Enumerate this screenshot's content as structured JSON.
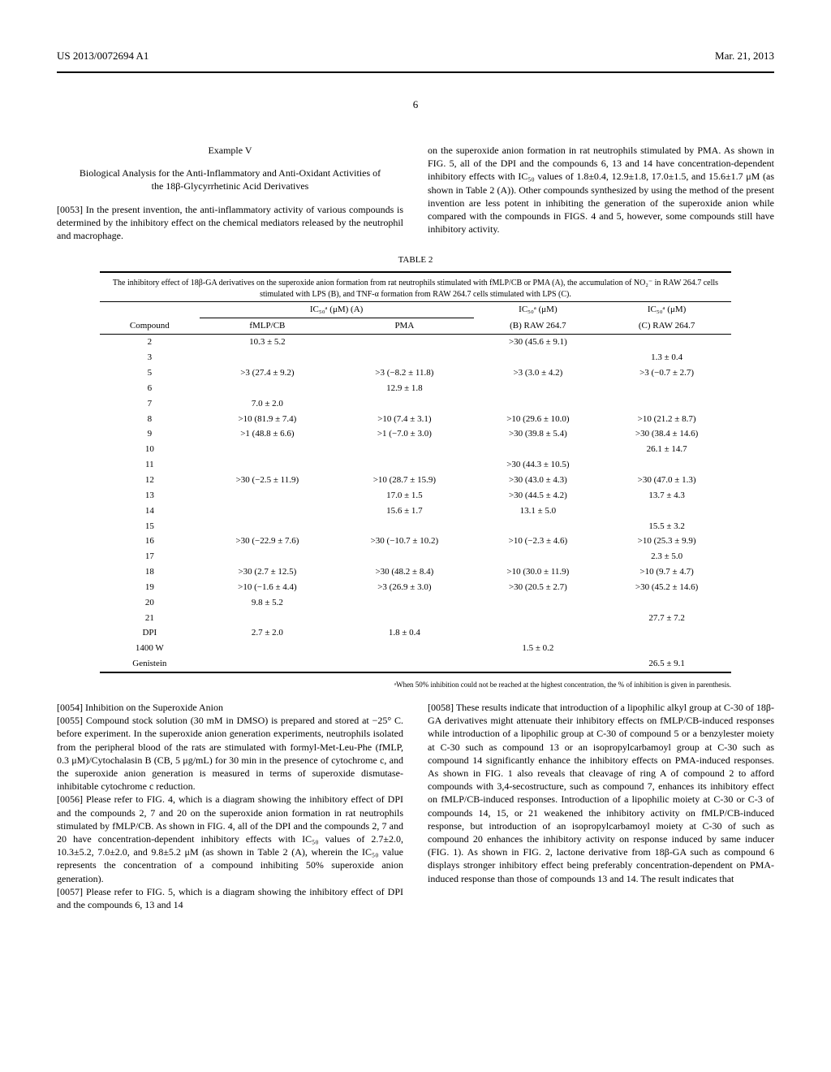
{
  "header": {
    "pub_number": "US 2013/0072694 A1",
    "pub_date": "Mar. 21, 2013"
  },
  "page_number": "6",
  "col_left_upper": {
    "example_label": "Example V",
    "example_title": "Biological Analysis for the Anti-Inflammatory and Anti-Oxidant Activities of the 18β-Glycyrrhetinic Acid Derivatives",
    "p0053": "[0053]   In the present invention, the anti-inflammatory activity of various compounds is determined by the inhibitory effect on the chemical mediators released by the neutrophil and macrophage."
  },
  "col_right_upper": {
    "p_cont": "on the superoxide anion formation in rat neutrophils stimulated by PMA. As shown in FIG. 5, all of the DPI and the compounds 6, 13 and 14 have concentration-dependent inhibitory effects with IC₅₀ values of 1.8±0.4, 12.9±1.8, 17.0±1.5, and 15.6±1.7 μM (as shown in Table 2 (A)). Other compounds synthesized by using the method of the present invention are less potent in inhibiting the generation of the superoxide anion while compared with the compounds in FIGS. 4 and 5, however, some compounds still have inhibitory activity."
  },
  "table": {
    "label": "TABLE 2",
    "caption": "The inhibitory effect of 18β-GA derivatives on the superoxide anion formation from rat neutrophils stimulated with fMLP/CB or PMA (A), the accumulation of NO₂⁻ in RAW 264.7 cells stimulated with LPS (B), and TNF-α formation from RAW 264.7 cells stimulated with LPS (C).",
    "group_head_a": "IC₅₀ᵃ (μM) (A)",
    "head_b": "IC₅₀ᵃ (μM)",
    "head_c": "IC₅₀ᵃ (μM)",
    "col_compound": "Compound",
    "col_fmlp": "fMLP/CB",
    "col_pma": "PMA",
    "col_b": "(B) RAW 264.7",
    "col_c": "(C) RAW 264.7",
    "rows": [
      {
        "c": "2",
        "fmlp": "10.3 ± 5.2",
        "pma": "",
        "b": ">30  (45.6 ± 9.1)",
        "cc": ""
      },
      {
        "c": "3",
        "fmlp": "",
        "pma": "",
        "b": "",
        "cc": "1.3 ± 0.4"
      },
      {
        "c": "5",
        "fmlp": ">3  (27.4 ± 9.2)",
        "pma": ">3  (−8.2 ± 11.8)",
        "b": ">3  (3.0 ± 4.2)",
        "cc": ">3  (−0.7 ± 2.7)"
      },
      {
        "c": "6",
        "fmlp": "",
        "pma": "12.9 ± 1.8",
        "b": "",
        "cc": ""
      },
      {
        "c": "7",
        "fmlp": "7.0 ± 2.0",
        "pma": "",
        "b": "",
        "cc": ""
      },
      {
        "c": "8",
        "fmlp": ">10  (81.9 ± 7.4)",
        "pma": ">10  (7.4 ± 3.1)",
        "b": ">10  (29.6 ± 10.0)",
        "cc": ">10  (21.2 ± 8.7)"
      },
      {
        "c": "9",
        "fmlp": ">1  (48.8 ± 6.6)",
        "pma": ">1  (−7.0 ± 3.0)",
        "b": ">30  (39.8 ± 5.4)",
        "cc": ">30  (38.4 ± 14.6)"
      },
      {
        "c": "10",
        "fmlp": "",
        "pma": "",
        "b": "",
        "cc": "26.1 ± 14.7"
      },
      {
        "c": "11",
        "fmlp": "",
        "pma": "",
        "b": ">30  (44.3 ± 10.5)",
        "cc": ""
      },
      {
        "c": "12",
        "fmlp": ">30  (−2.5 ± 11.9)",
        "pma": ">10  (28.7 ± 15.9)",
        "b": ">30  (43.0 ± 4.3)",
        "cc": ">30  (47.0 ± 1.3)"
      },
      {
        "c": "13",
        "fmlp": "",
        "pma": "17.0 ± 1.5",
        "b": ">30  (44.5 ± 4.2)",
        "cc": "13.7 ± 4.3"
      },
      {
        "c": "14",
        "fmlp": "",
        "pma": "15.6 ± 1.7",
        "b": "13.1 ± 5.0",
        "cc": ""
      },
      {
        "c": "15",
        "fmlp": "",
        "pma": "",
        "b": "",
        "cc": "15.5 ± 3.2"
      },
      {
        "c": "16",
        "fmlp": ">30  (−22.9 ± 7.6)",
        "pma": ">30  (−10.7 ± 10.2)",
        "b": ">10  (−2.3 ± 4.6)",
        "cc": ">10  (25.3 ± 9.9)"
      },
      {
        "c": "17",
        "fmlp": "",
        "pma": "",
        "b": "",
        "cc": "2.3 ± 5.0"
      },
      {
        "c": "18",
        "fmlp": ">30  (2.7 ± 12.5)",
        "pma": ">30  (48.2 ± 8.4)",
        "b": ">10  (30.0 ± 11.9)",
        "cc": ">10  (9.7 ± 4.7)"
      },
      {
        "c": "19",
        "fmlp": ">10  (−1.6 ± 4.4)",
        "pma": ">3  (26.9 ± 3.0)",
        "b": ">30  (20.5 ± 2.7)",
        "cc": ">30  (45.2 ± 14.6)"
      },
      {
        "c": "20",
        "fmlp": "9.8 ± 5.2",
        "pma": "",
        "b": "",
        "cc": ""
      },
      {
        "c": "21",
        "fmlp": "",
        "pma": "",
        "b": "",
        "cc": "27.7 ± 7.2"
      },
      {
        "c": "DPI",
        "fmlp": "2.7 ± 2.0",
        "pma": "1.8 ± 0.4",
        "b": "",
        "cc": ""
      },
      {
        "c": "1400 W",
        "fmlp": "",
        "pma": "",
        "b": "1.5 ± 0.2",
        "cc": ""
      },
      {
        "c": "Genistein",
        "fmlp": "",
        "pma": "",
        "b": "",
        "cc": "26.5 ± 9.1"
      }
    ],
    "footnote": "ᵃWhen 50% inhibition could not be reached at the highest concentration, the % of inhibition is given in parenthesis."
  },
  "col_left_lower": {
    "p0054": "[0054]   Inhibition on the Superoxide Anion",
    "p0055": "[0055]   Compound stock solution (30 mM in DMSO) is prepared and stored at −25° C. before experiment. In the superoxide anion generation experiments, neutrophils isolated from the peripheral blood of the rats are stimulated with formyl-Met-Leu-Phe (fMLP, 0.3 μM)/Cytochalasin B (CB, 5 μg/mL) for 30 min in the presence of cytochrome c, and the superoxide anion generation is measured in terms of superoxide dismutase-inhibitable cytochrome c reduction.",
    "p0056": "[0056]   Please refer to FIG. 4, which is a diagram showing the inhibitory effect of DPI and the compounds 2, 7 and 20 on the superoxide anion formation in rat neutrophils stimulated by fMLP/CB. As shown in FIG. 4, all of the DPI and the compounds 2, 7 and 20 have concentration-dependent inhibitory effects with IC₅₀ values of 2.7±2.0, 10.3±5.2, 7.0±2.0, and 9.8±5.2 μM (as shown in Table 2 (A), wherein the IC₅₀ value represents the concentration of a compound inhibiting 50% superoxide anion generation).",
    "p0057": "[0057]   Please refer to FIG. 5, which is a diagram showing the inhibitory effect of DPI and the compounds 6, 13 and 14"
  },
  "col_right_lower": {
    "p0058": "[0058]   These results indicate that introduction of a lipophilic alkyl group at C-30 of 18β-GA derivatives might attenuate their inhibitory effects on fMLP/CB-induced responses while introduction of a lipophilic group at C-30 of compound 5 or a benzylester moiety at C-30 such as compound 13 or an isopropylcarbamoyl group at C-30 such as compound 14 significantly enhance the inhibitory effects on PMA-induced responses. As shown in FIG. 1 also reveals that cleavage of ring A of compound 2 to afford compounds with 3,4-secostructure, such as compound 7, enhances its inhibitory effect on fMLP/CB-induced responses. Introduction of a lipophilic moiety at C-30 or C-3 of compounds 14, 15, or 21 weakened the inhibitory activity on fMLP/CB-induced response, but introduction of an isopropylcarbamoyl moiety at C-30 of such as compound 20 enhances the inhibitory activity on response induced by same inducer (FIG. 1). As shown in FIG. 2, lactone derivative from 18β-GA such as compound 6 displays stronger inhibitory effect being preferably concentration-dependent on PMA-induced response than those of compounds 13 and 14. The result indicates that"
  }
}
